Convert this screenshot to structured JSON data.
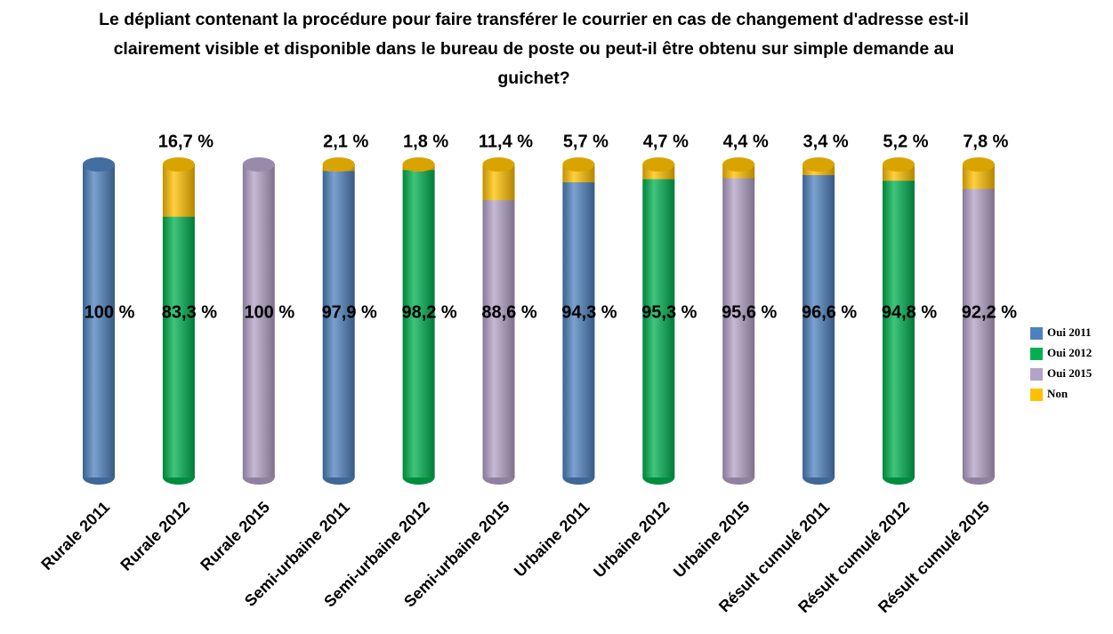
{
  "chart_data": {
    "type": "stacked_bar",
    "title": "Le dépliant contenant la procédure pour faire transférer le courrier en cas de changement d'adresse est-il clairement visible et disponible dans le bureau de poste ou peut-il être obtenu sur simple demande au guichet?",
    "categories": [
      "Rurale 2011",
      "Rurale 2012",
      "Rurale 2015",
      "Semi-urbaine 2011",
      "Semi-urbaine 2012",
      "Semi-urbaine 2015",
      "Urbaine 2011",
      "Urbaine 2012",
      "Urbaine 2015",
      "Résult cumulé 2011",
      "Résult cumulé 2012",
      "Résult cumulé 2015"
    ],
    "series": [
      {
        "name": "Oui 2011",
        "color": "#4f81bd",
        "values": [
          100,
          null,
          null,
          97.9,
          null,
          null,
          94.3,
          null,
          null,
          96.6,
          null,
          null
        ],
        "value_labels": [
          "100 %",
          null,
          null,
          "97,9 %",
          null,
          null,
          "94,3 %",
          null,
          null,
          "96,6 %",
          null,
          null
        ]
      },
      {
        "name": "Oui 2012",
        "color": "#00b050",
        "values": [
          null,
          83.3,
          null,
          null,
          98.2,
          null,
          null,
          95.3,
          null,
          null,
          94.8,
          null
        ],
        "value_labels": [
          null,
          "83,3 %",
          null,
          null,
          "98,2 %",
          null,
          null,
          "95,3 %",
          null,
          null,
          "94,8 %",
          null
        ]
      },
      {
        "name": "Oui 2015",
        "color": "#b3a2c7",
        "values": [
          null,
          null,
          100,
          null,
          null,
          88.6,
          null,
          null,
          95.6,
          null,
          null,
          92.2
        ],
        "value_labels": [
          null,
          null,
          "100 %",
          null,
          null,
          "88,6 %",
          null,
          null,
          "95,6 %",
          null,
          null,
          "92,2 %"
        ]
      },
      {
        "name": "Non",
        "color": "#ffc000",
        "values": [
          null,
          16.7,
          null,
          2.1,
          1.8,
          11.4,
          5.7,
          4.7,
          4.4,
          3.4,
          5.2,
          7.8
        ],
        "value_labels": [
          null,
          "16,7 %",
          null,
          "2,1 %",
          "1,8 %",
          "11,4 %",
          "5,7 %",
          "4,7 %",
          "4,4 %",
          "3,4 %",
          "5,2 %",
          "7,8 %"
        ]
      }
    ],
    "legend": "right"
  }
}
